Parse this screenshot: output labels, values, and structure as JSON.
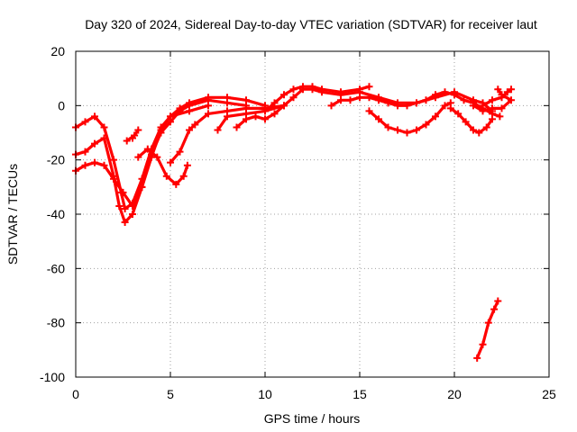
{
  "chart_data": {
    "type": "scatter",
    "title": "Day 320 of 2024, Sidereal Day-to-day VTEC variation (SDTVAR) for receiver laut",
    "xlabel": "GPS time / hours",
    "ylabel": "SDTVAR / TECUs",
    "xlim": [
      0,
      25
    ],
    "ylim": [
      -100,
      20
    ],
    "xticks": [
      0,
      5,
      10,
      15,
      20,
      25
    ],
    "yticks": [
      -100,
      -80,
      -60,
      -40,
      -20,
      0,
      20
    ],
    "x_tick_labels": [
      "0",
      "5",
      "10",
      "15",
      "20",
      "25"
    ],
    "y_tick_labels": [
      "-100",
      "-80",
      "-60",
      "-40",
      "-20",
      "0",
      "20"
    ],
    "grid": true,
    "marker": "plus",
    "color": "#ff0000",
    "series": [
      {
        "name": "track-1",
        "points": [
          [
            0.0,
            -8
          ],
          [
            0.5,
            -6
          ],
          [
            1.0,
            -4
          ],
          [
            1.5,
            -8
          ],
          [
            2.0,
            -20
          ],
          [
            2.4,
            -32
          ],
          [
            2.6,
            -38
          ],
          [
            3.0,
            -36
          ],
          [
            3.5,
            -27
          ],
          [
            4.0,
            -16
          ],
          [
            4.5,
            -8
          ],
          [
            5.0,
            -4
          ],
          [
            5.5,
            -1
          ],
          [
            6.0,
            1
          ],
          [
            7.0,
            3
          ],
          [
            8.0,
            3
          ],
          [
            9.0,
            2
          ],
          [
            10.0,
            0
          ]
        ]
      },
      {
        "name": "track-2",
        "points": [
          [
            0.0,
            -18
          ],
          [
            0.5,
            -17
          ],
          [
            1.0,
            -14
          ],
          [
            1.5,
            -12
          ],
          [
            2.0,
            -26
          ],
          [
            2.3,
            -37
          ],
          [
            2.6,
            -43
          ],
          [
            3.0,
            -40
          ],
          [
            3.5,
            -30
          ],
          [
            4.0,
            -18
          ],
          [
            4.5,
            -10
          ],
          [
            5.0,
            -6
          ],
          [
            5.5,
            -2
          ],
          [
            6.0,
            0
          ],
          [
            7.0,
            2
          ],
          [
            8.0,
            1
          ],
          [
            9.0,
            0
          ]
        ]
      },
      {
        "name": "track-3",
        "points": [
          [
            0.0,
            -24
          ],
          [
            0.5,
            -22
          ],
          [
            1.0,
            -21
          ],
          [
            1.5,
            -22
          ],
          [
            2.0,
            -27
          ],
          [
            2.5,
            -32
          ],
          [
            3.0,
            -37
          ],
          [
            3.5,
            -30
          ],
          [
            4.0,
            -19
          ],
          [
            4.5,
            -9
          ],
          [
            5.0,
            -4
          ],
          [
            6.0,
            -2
          ],
          [
            7.0,
            0
          ]
        ]
      },
      {
        "name": "track-4",
        "points": [
          [
            3.0,
            -12
          ],
          [
            3.3,
            -9
          ],
          [
            3.1,
            -11
          ],
          [
            2.7,
            -13
          ]
        ]
      },
      {
        "name": "track-5",
        "points": [
          [
            3.3,
            -19
          ],
          [
            3.8,
            -16
          ],
          [
            4.3,
            -19
          ],
          [
            4.8,
            -26
          ],
          [
            5.3,
            -29
          ],
          [
            5.7,
            -26
          ],
          [
            5.9,
            -22
          ]
        ]
      },
      {
        "name": "track-6",
        "points": [
          [
            5.0,
            -21
          ],
          [
            5.5,
            -17
          ],
          [
            6.0,
            -9
          ],
          [
            6.3,
            -7
          ],
          [
            7.0,
            -3
          ],
          [
            8.0,
            -2
          ],
          [
            9.0,
            -1
          ],
          [
            10.0,
            -1
          ],
          [
            11.0,
            0
          ]
        ]
      },
      {
        "name": "track-7",
        "points": [
          [
            7.5,
            -9
          ],
          [
            8.0,
            -4
          ],
          [
            9.0,
            -3
          ],
          [
            10.0,
            -2
          ],
          [
            11.0,
            0
          ]
        ]
      },
      {
        "name": "track-8",
        "points": [
          [
            8.5,
            -8
          ],
          [
            9.0,
            -5
          ],
          [
            9.5,
            -4
          ],
          [
            10.0,
            -5
          ],
          [
            10.5,
            -3
          ],
          [
            11.0,
            0
          ],
          [
            11.5,
            3
          ],
          [
            12.0,
            6
          ],
          [
            12.5,
            6
          ],
          [
            13.0,
            5
          ],
          [
            14.0,
            4
          ],
          [
            15.0,
            5
          ],
          [
            16.0,
            3
          ],
          [
            17.0,
            1
          ],
          [
            18.0,
            1
          ],
          [
            19.0,
            3
          ],
          [
            20.0,
            5
          ],
          [
            21.0,
            2
          ],
          [
            21.5,
            1
          ],
          [
            22.0,
            -2
          ]
        ]
      },
      {
        "name": "track-9",
        "points": [
          [
            10.0,
            -2
          ],
          [
            10.5,
            1
          ],
          [
            11.0,
            4
          ],
          [
            11.5,
            6
          ],
          [
            12.0,
            7
          ],
          [
            12.5,
            7
          ],
          [
            13.0,
            6
          ],
          [
            14.0,
            5
          ],
          [
            15.0,
            6
          ],
          [
            15.5,
            7
          ]
        ]
      },
      {
        "name": "track-10",
        "points": [
          [
            13.5,
            0
          ],
          [
            14.0,
            2
          ],
          [
            14.5,
            2
          ],
          [
            15.0,
            3
          ],
          [
            15.5,
            3
          ],
          [
            16.0,
            2
          ],
          [
            16.5,
            1
          ],
          [
            17.0,
            0
          ],
          [
            17.5,
            0
          ],
          [
            18.0,
            1
          ],
          [
            18.5,
            2
          ],
          [
            19.0,
            4
          ],
          [
            19.5,
            5
          ],
          [
            20.0,
            4
          ],
          [
            20.5,
            2
          ],
          [
            21.0,
            1
          ],
          [
            21.5,
            -1
          ],
          [
            22.0,
            -3
          ],
          [
            22.4,
            -4
          ]
        ]
      },
      {
        "name": "track-11",
        "points": [
          [
            15.5,
            -2
          ],
          [
            16.0,
            -5
          ],
          [
            16.5,
            -8
          ],
          [
            17.0,
            -9
          ],
          [
            17.5,
            -10
          ],
          [
            18.0,
            -9
          ],
          [
            18.5,
            -7
          ],
          [
            19.0,
            -4
          ],
          [
            19.5,
            0
          ],
          [
            19.8,
            1
          ]
        ]
      },
      {
        "name": "track-12",
        "points": [
          [
            19.8,
            -1
          ],
          [
            20.2,
            -3
          ],
          [
            20.6,
            -6
          ],
          [
            21.0,
            -9
          ],
          [
            21.3,
            -10
          ],
          [
            21.7,
            -8
          ],
          [
            22.0,
            -5
          ]
        ]
      },
      {
        "name": "track-13",
        "points": [
          [
            21.0,
            0
          ],
          [
            21.5,
            -2
          ],
          [
            22.0,
            -1
          ],
          [
            22.5,
            -1
          ],
          [
            23.0,
            2
          ],
          [
            22.5,
            4
          ],
          [
            22.3,
            6
          ]
        ]
      },
      {
        "name": "track-14",
        "points": [
          [
            21.5,
            0
          ],
          [
            22.0,
            2
          ],
          [
            22.5,
            3
          ],
          [
            22.8,
            5
          ],
          [
            23.0,
            6
          ]
        ]
      },
      {
        "name": "track-15",
        "points": [
          [
            21.2,
            -93
          ],
          [
            21.5,
            -88
          ],
          [
            21.8,
            -80
          ],
          [
            22.1,
            -75
          ],
          [
            22.3,
            -72
          ]
        ]
      }
    ]
  }
}
